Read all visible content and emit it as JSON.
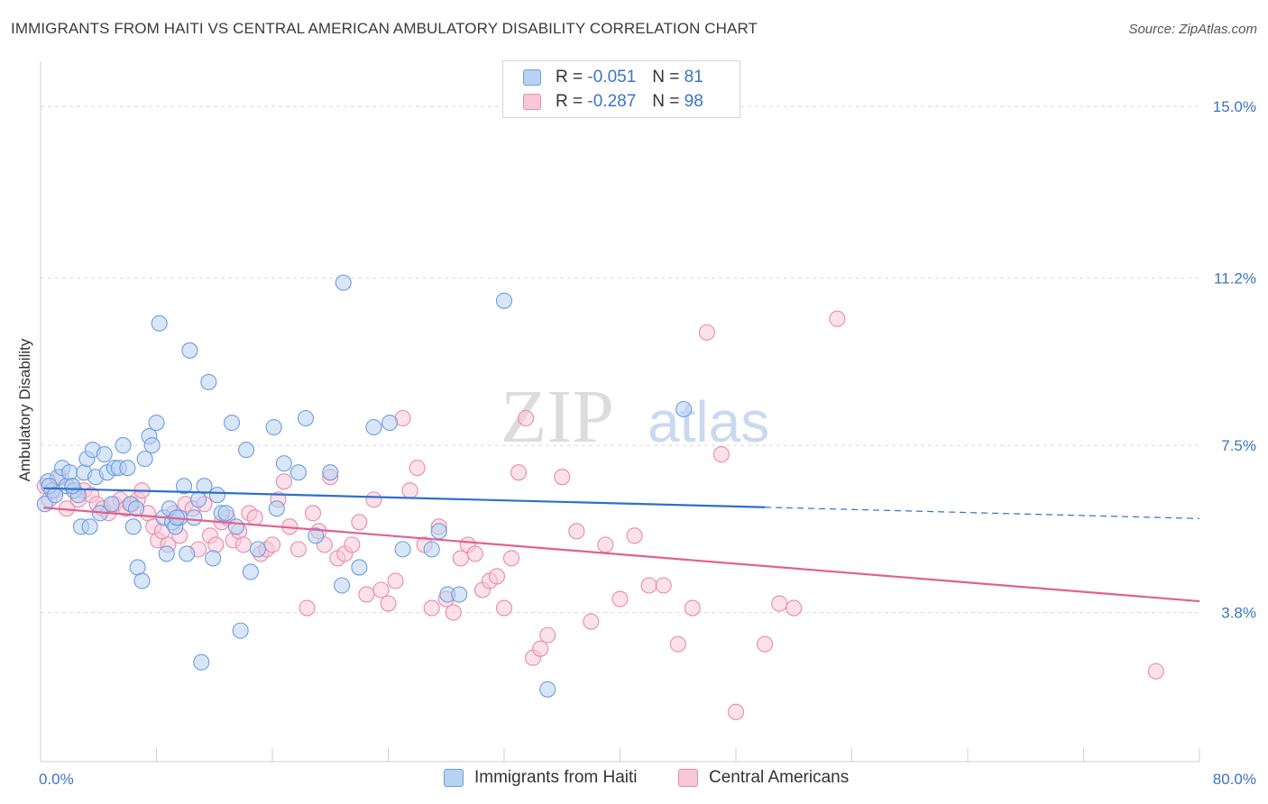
{
  "title": "IMMIGRANTS FROM HAITI VS CENTRAL AMERICAN AMBULATORY DISABILITY CORRELATION CHART",
  "source": "Source: ZipAtlas.com",
  "watermark": {
    "zip": "ZIP",
    "atlas": "atlas"
  },
  "legend_top": {
    "rows": [
      {
        "r_label": "R =",
        "r_value": "-0.051",
        "n_label": "N =",
        "n_value": "81"
      },
      {
        "r_label": "R =",
        "r_value": "-0.287",
        "n_label": "N =",
        "n_value": "98"
      }
    ]
  },
  "colors": {
    "blue_fill": "#b8d2f3",
    "blue_stroke": "#6d9de0",
    "blue_line": "#2e6fd0",
    "pink_fill": "#f8c8d8",
    "pink_stroke": "#e98aaa",
    "pink_line": "#e2608e",
    "tick_text": "#3b74c4",
    "grid": "#d9d9d9"
  },
  "chart_data": {
    "type": "scatter",
    "title": "IMMIGRANTS FROM HAITI VS CENTRAL AMERICAN AMBULATORY DISABILITY CORRELATION CHART",
    "xlabel": "",
    "ylabel": "Ambulatory Disability",
    "xlim": [
      0,
      80
    ],
    "ylim": [
      0.5,
      15.8
    ],
    "x_tick_labels": [
      "0.0%",
      "80.0%"
    ],
    "y_ticks": [
      3.8,
      7.5,
      11.2,
      15.0
    ],
    "y_tick_labels": [
      "3.8%",
      "7.5%",
      "11.2%",
      "15.0%"
    ],
    "grid": true,
    "legend_position": "top-center",
    "series": [
      {
        "name": "Immigrants from Haiti",
        "color": "#6d9de0",
        "r": -0.051,
        "n": 81,
        "trend": {
          "x0": 0.2,
          "y0": 6.55,
          "x1": 50.0,
          "y1": 6.13,
          "dash_x1": 80.0,
          "dash_y1": 5.88
        },
        "points": [
          [
            0.3,
            6.2
          ],
          [
            0.5,
            6.7
          ],
          [
            0.8,
            6.5
          ],
          [
            1.2,
            6.8
          ],
          [
            1.5,
            7.0
          ],
          [
            1.8,
            6.6
          ],
          [
            2.0,
            6.9
          ],
          [
            2.3,
            6.5
          ],
          [
            2.6,
            6.4
          ],
          [
            2.8,
            5.7
          ],
          [
            3.0,
            6.9
          ],
          [
            3.2,
            7.2
          ],
          [
            3.4,
            5.7
          ],
          [
            3.6,
            7.4
          ],
          [
            3.8,
            6.8
          ],
          [
            4.1,
            6.0
          ],
          [
            4.4,
            7.3
          ],
          [
            4.6,
            6.9
          ],
          [
            4.9,
            6.2
          ],
          [
            5.1,
            7.0
          ],
          [
            5.4,
            7.0
          ],
          [
            5.7,
            7.5
          ],
          [
            6.0,
            7.0
          ],
          [
            6.2,
            6.2
          ],
          [
            6.4,
            5.7
          ],
          [
            6.7,
            4.8
          ],
          [
            7.0,
            4.5
          ],
          [
            7.2,
            7.2
          ],
          [
            7.5,
            7.7
          ],
          [
            7.7,
            7.5
          ],
          [
            8.0,
            8.0
          ],
          [
            8.2,
            10.2
          ],
          [
            8.5,
            5.9
          ],
          [
            8.7,
            5.1
          ],
          [
            8.9,
            6.1
          ],
          [
            9.1,
            5.8
          ],
          [
            9.3,
            5.7
          ],
          [
            9.6,
            5.9
          ],
          [
            9.9,
            6.6
          ],
          [
            10.1,
            5.1
          ],
          [
            10.3,
            9.6
          ],
          [
            10.6,
            5.9
          ],
          [
            10.9,
            6.3
          ],
          [
            11.1,
            2.7
          ],
          [
            11.3,
            6.6
          ],
          [
            11.6,
            8.9
          ],
          [
            11.9,
            5.0
          ],
          [
            12.2,
            6.4
          ],
          [
            12.5,
            6.0
          ],
          [
            12.8,
            6.0
          ],
          [
            13.2,
            8.0
          ],
          [
            13.5,
            5.7
          ],
          [
            13.8,
            3.4
          ],
          [
            14.2,
            7.4
          ],
          [
            14.5,
            4.7
          ],
          [
            15.0,
            5.2
          ],
          [
            16.1,
            7.9
          ],
          [
            16.3,
            6.1
          ],
          [
            16.8,
            7.1
          ],
          [
            17.8,
            6.9
          ],
          [
            18.3,
            8.1
          ],
          [
            19.0,
            5.5
          ],
          [
            20.0,
            6.9
          ],
          [
            20.8,
            4.4
          ],
          [
            20.9,
            11.1
          ],
          [
            22.0,
            4.8
          ],
          [
            23.0,
            7.9
          ],
          [
            24.1,
            8.0
          ],
          [
            25.0,
            5.2
          ],
          [
            27.0,
            5.2
          ],
          [
            27.5,
            5.6
          ],
          [
            28.1,
            4.2
          ],
          [
            28.9,
            4.2
          ],
          [
            32.0,
            10.7
          ],
          [
            35.0,
            2.1
          ],
          [
            44.4,
            8.3
          ],
          [
            0.6,
            6.6
          ],
          [
            1.0,
            6.4
          ],
          [
            2.2,
            6.6
          ],
          [
            6.6,
            6.1
          ],
          [
            9.4,
            5.9
          ]
        ]
      },
      {
        "name": "Central Americans",
        "color": "#e98aaa",
        "r": -0.287,
        "n": 98,
        "trend": {
          "x0": 0.2,
          "y0": 6.12,
          "x1": 80.0,
          "y1": 4.05
        },
        "points": [
          [
            0.3,
            6.6
          ],
          [
            0.6,
            6.3
          ],
          [
            1.0,
            6.5
          ],
          [
            1.4,
            6.8
          ],
          [
            1.8,
            6.1
          ],
          [
            2.2,
            6.6
          ],
          [
            2.6,
            6.3
          ],
          [
            3.0,
            6.5
          ],
          [
            3.5,
            6.4
          ],
          [
            3.9,
            6.2
          ],
          [
            4.3,
            6.1
          ],
          [
            4.7,
            6.0
          ],
          [
            5.1,
            6.2
          ],
          [
            5.5,
            6.3
          ],
          [
            5.9,
            6.1
          ],
          [
            6.3,
            6.2
          ],
          [
            6.7,
            6.3
          ],
          [
            7.0,
            6.5
          ],
          [
            7.4,
            6.0
          ],
          [
            7.8,
            5.7
          ],
          [
            8.1,
            5.4
          ],
          [
            8.4,
            5.6
          ],
          [
            8.8,
            5.3
          ],
          [
            9.2,
            6.0
          ],
          [
            9.6,
            5.5
          ],
          [
            10.0,
            6.2
          ],
          [
            10.5,
            6.1
          ],
          [
            10.9,
            5.2
          ],
          [
            11.3,
            6.2
          ],
          [
            11.7,
            5.5
          ],
          [
            12.1,
            5.3
          ],
          [
            12.5,
            5.8
          ],
          [
            12.9,
            5.9
          ],
          [
            13.3,
            5.4
          ],
          [
            13.7,
            5.6
          ],
          [
            14.0,
            5.3
          ],
          [
            14.4,
            6.0
          ],
          [
            14.8,
            5.9
          ],
          [
            15.2,
            5.1
          ],
          [
            15.6,
            5.2
          ],
          [
            16.0,
            5.3
          ],
          [
            16.4,
            6.3
          ],
          [
            16.8,
            6.7
          ],
          [
            17.2,
            5.7
          ],
          [
            17.8,
            5.2
          ],
          [
            18.4,
            3.9
          ],
          [
            18.8,
            6.0
          ],
          [
            19.2,
            5.6
          ],
          [
            19.6,
            5.3
          ],
          [
            20.0,
            6.8
          ],
          [
            20.5,
            5.0
          ],
          [
            21.0,
            5.1
          ],
          [
            21.5,
            5.3
          ],
          [
            22.0,
            5.8
          ],
          [
            22.5,
            4.2
          ],
          [
            23.0,
            6.3
          ],
          [
            23.5,
            4.3
          ],
          [
            24.0,
            4.0
          ],
          [
            24.5,
            4.5
          ],
          [
            25.0,
            8.1
          ],
          [
            25.5,
            6.5
          ],
          [
            26.0,
            7.0
          ],
          [
            26.5,
            5.3
          ],
          [
            27.0,
            3.9
          ],
          [
            27.5,
            5.7
          ],
          [
            28.0,
            4.1
          ],
          [
            28.5,
            3.8
          ],
          [
            29.0,
            5.0
          ],
          [
            29.5,
            5.3
          ],
          [
            30.0,
            5.1
          ],
          [
            30.5,
            4.3
          ],
          [
            31.0,
            4.5
          ],
          [
            31.5,
            4.6
          ],
          [
            32.0,
            3.9
          ],
          [
            32.5,
            5.0
          ],
          [
            33.0,
            6.9
          ],
          [
            33.5,
            8.1
          ],
          [
            34.0,
            2.8
          ],
          [
            34.5,
            3.0
          ],
          [
            35.0,
            3.3
          ],
          [
            36.0,
            6.8
          ],
          [
            37.0,
            5.6
          ],
          [
            38.0,
            3.6
          ],
          [
            39.0,
            5.3
          ],
          [
            40.0,
            4.1
          ],
          [
            41.0,
            5.5
          ],
          [
            42.0,
            4.4
          ],
          [
            43.0,
            4.4
          ],
          [
            44.0,
            3.1
          ],
          [
            45.0,
            3.9
          ],
          [
            46.0,
            10.0
          ],
          [
            47.0,
            7.3
          ],
          [
            48.0,
            1.6
          ],
          [
            50.0,
            3.1
          ],
          [
            51.0,
            4.0
          ],
          [
            52.0,
            3.9
          ],
          [
            55.0,
            10.3
          ],
          [
            77.0,
            2.5
          ]
        ]
      }
    ]
  },
  "legend_bottom": [
    {
      "label": "Immigrants from Haiti"
    },
    {
      "label": "Central Americans"
    }
  ]
}
